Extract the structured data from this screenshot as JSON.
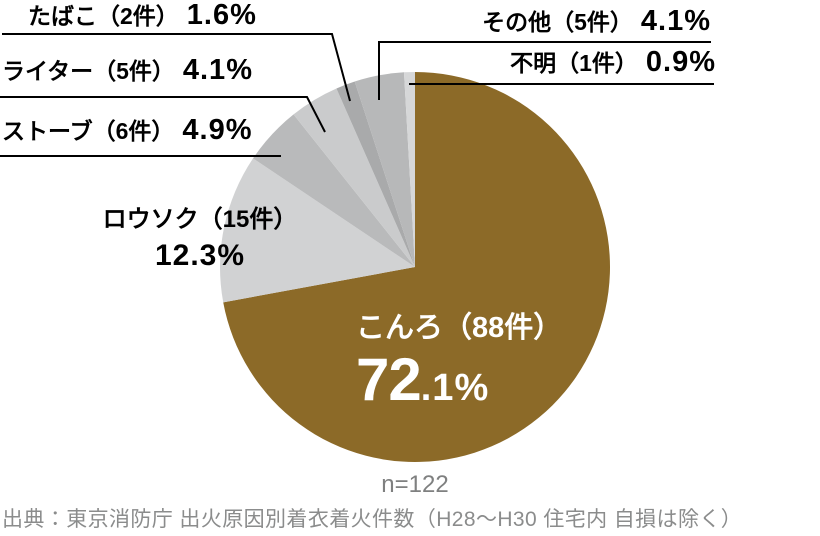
{
  "chart_data": {
    "type": "pie",
    "title": "",
    "categories": [
      "こんろ",
      "ロウソク",
      "ストーブ",
      "ライター",
      "たばこ",
      "その他",
      "不明"
    ],
    "keys": [
      "konro",
      "rousoku",
      "stove",
      "lighter",
      "tabako",
      "sonota",
      "fumei"
    ],
    "values": [
      72.1,
      12.3,
      4.9,
      4.1,
      1.6,
      4.1,
      0.9
    ],
    "counts": [
      88,
      15,
      6,
      5,
      2,
      5,
      1
    ],
    "unit": "%",
    "colors": [
      "#8c6a28",
      "#d1d2d3",
      "#b9babb",
      "#cacbcc",
      "#a9aaab",
      "#b7b8b9",
      "#d6d7d8"
    ],
    "start_angle": "top",
    "direction": "clockwise",
    "legend_position": "callout-labels",
    "n_total": "n=122",
    "source": "出典：東京消防庁 出火原因別着衣着火件数（H28～H30 住宅内 自損は除く）"
  },
  "labels": {
    "tabako": {
      "cat": "たばこ（2件）",
      "pct": "1.6%"
    },
    "lighter": {
      "cat": "ライター（5件）",
      "pct": "4.1%"
    },
    "stove": {
      "cat": "ストーブ（6件）",
      "pct": "4.9%"
    },
    "rousoku": {
      "cat": "ロウソク（15件）",
      "pct": "12.3%"
    },
    "sonota": {
      "cat": "その他（5件）",
      "pct": "4.1%"
    },
    "fumei": {
      "cat": "不明（1件）",
      "pct": "0.9%"
    },
    "konro": {
      "cat": "こんろ（88件）",
      "pct_big": "72",
      "pct_small": ".1%"
    }
  },
  "footer": {
    "n_label": "n=122",
    "source": "出典：東京消防庁 出火原因別着衣着火件数（H28～H30 住宅内 自損は除く）"
  }
}
